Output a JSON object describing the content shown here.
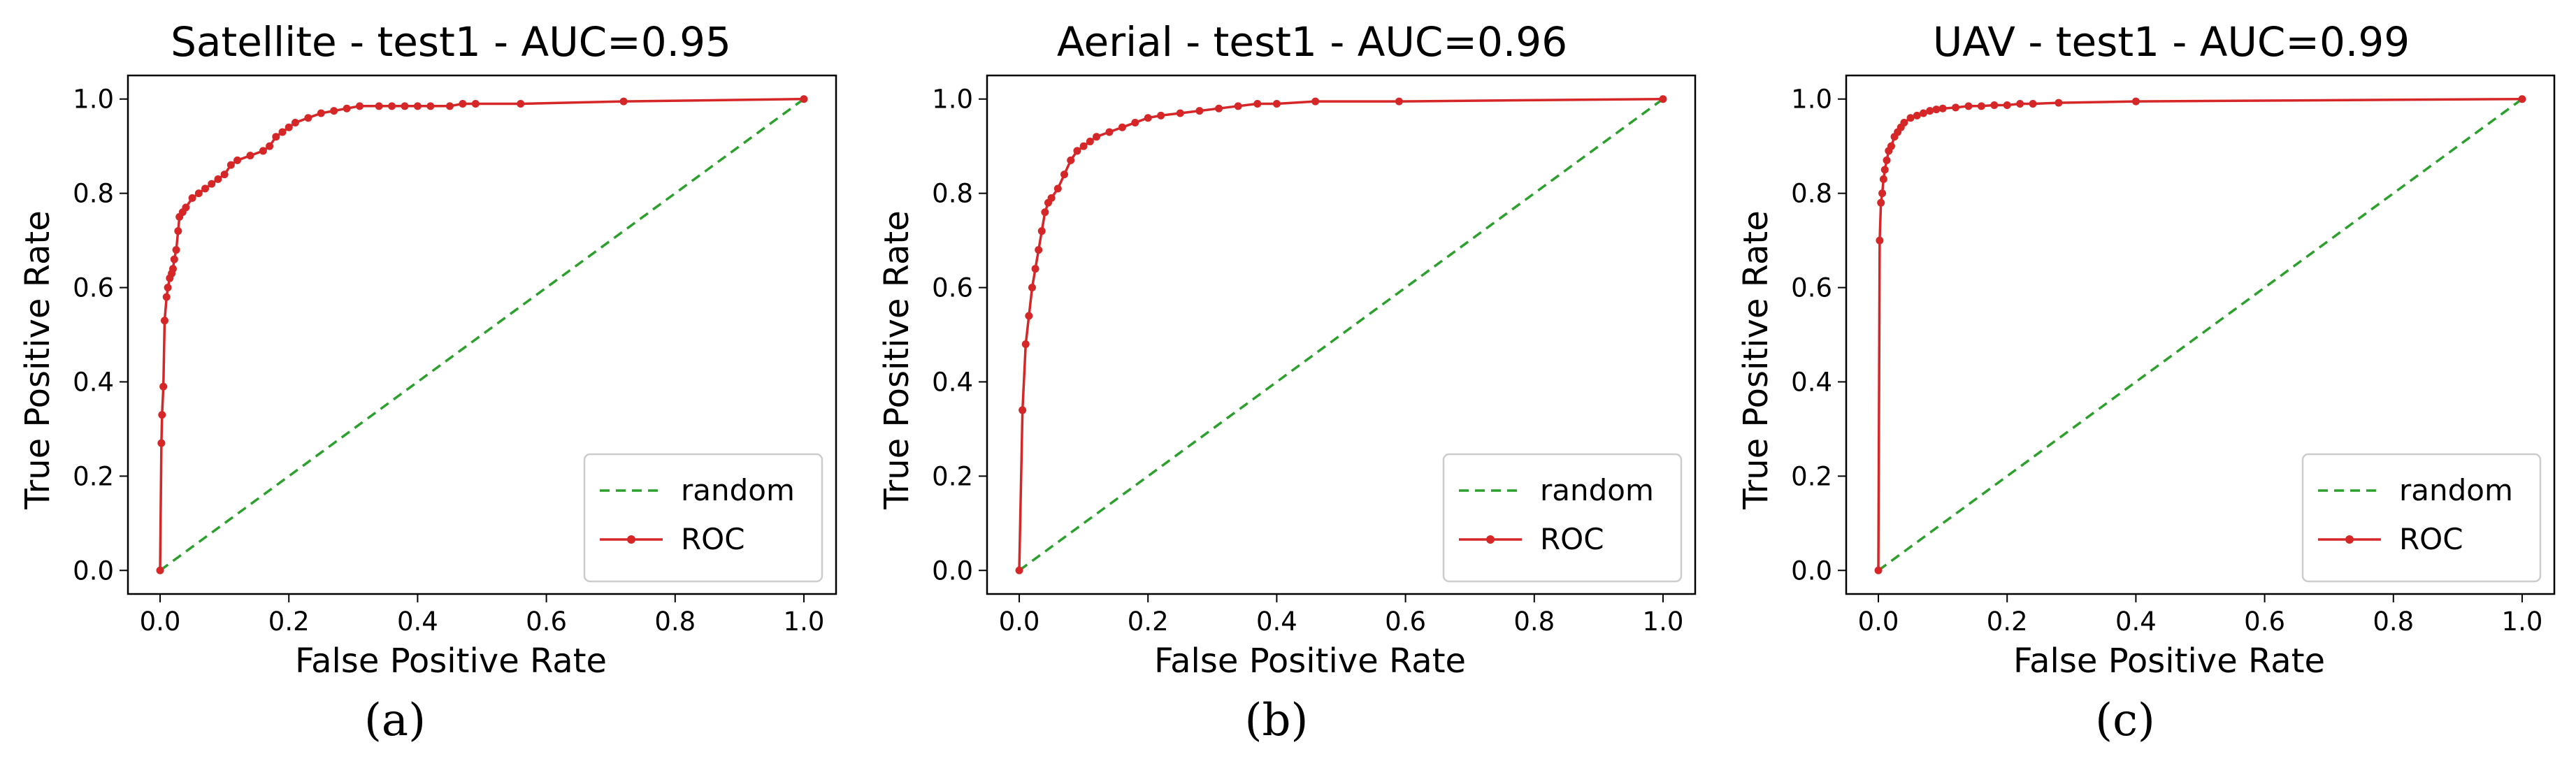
{
  "figure": {
    "colors": {
      "roc": "#d62728",
      "random": "#2ca02c",
      "axis": "#000000",
      "legend_border": "#cccccc"
    }
  },
  "chart_data": [
    {
      "type": "line",
      "caption": "(a)",
      "title": "Satellite - test1 - AUC=0.95",
      "xlabel": "False Positive Rate",
      "ylabel": "True Positive Rate",
      "xlim": [
        -0.05,
        1.05
      ],
      "ylim": [
        -0.05,
        1.05
      ],
      "xticks": [
        0.0,
        0.2,
        0.4,
        0.6,
        0.8,
        1.0
      ],
      "yticks": [
        0.0,
        0.2,
        0.4,
        0.6,
        0.8,
        1.0
      ],
      "tick_labels": [
        "0.0",
        "0.2",
        "0.4",
        "0.6",
        "0.8",
        "1.0"
      ],
      "grid": false,
      "legend": {
        "position": "lower-right",
        "entries": [
          "random",
          "ROC"
        ]
      },
      "series": [
        {
          "name": "random",
          "style": "dashed",
          "x": [
            0.0,
            1.0
          ],
          "y": [
            0.0,
            1.0
          ]
        },
        {
          "name": "ROC",
          "style": "solid-markers",
          "x": [
            0.0,
            0.002,
            0.003,
            0.005,
            0.007,
            0.01,
            0.012,
            0.015,
            0.018,
            0.02,
            0.022,
            0.025,
            0.028,
            0.03,
            0.035,
            0.04,
            0.05,
            0.06,
            0.07,
            0.08,
            0.09,
            0.1,
            0.11,
            0.12,
            0.14,
            0.16,
            0.17,
            0.18,
            0.19,
            0.2,
            0.21,
            0.23,
            0.25,
            0.27,
            0.29,
            0.31,
            0.34,
            0.36,
            0.38,
            0.4,
            0.42,
            0.45,
            0.47,
            0.49,
            0.56,
            0.72,
            1.0
          ],
          "y": [
            0.0,
            0.27,
            0.33,
            0.39,
            0.53,
            0.58,
            0.6,
            0.62,
            0.63,
            0.64,
            0.66,
            0.68,
            0.72,
            0.75,
            0.76,
            0.77,
            0.79,
            0.8,
            0.81,
            0.82,
            0.83,
            0.84,
            0.86,
            0.87,
            0.88,
            0.89,
            0.9,
            0.92,
            0.93,
            0.94,
            0.95,
            0.96,
            0.97,
            0.975,
            0.98,
            0.985,
            0.985,
            0.985,
            0.985,
            0.985,
            0.985,
            0.985,
            0.99,
            0.99,
            0.99,
            0.995,
            1.0
          ]
        }
      ]
    },
    {
      "type": "line",
      "caption": "(b)",
      "title": "Aerial - test1 - AUC=0.96",
      "xlabel": "False Positive Rate",
      "ylabel": "True Positive Rate",
      "xlim": [
        -0.05,
        1.05
      ],
      "ylim": [
        -0.05,
        1.05
      ],
      "xticks": [
        0.0,
        0.2,
        0.4,
        0.6,
        0.8,
        1.0
      ],
      "yticks": [
        0.0,
        0.2,
        0.4,
        0.6,
        0.8,
        1.0
      ],
      "tick_labels": [
        "0.0",
        "0.2",
        "0.4",
        "0.6",
        "0.8",
        "1.0"
      ],
      "grid": false,
      "legend": {
        "position": "lower-right",
        "entries": [
          "random",
          "ROC"
        ]
      },
      "series": [
        {
          "name": "random",
          "style": "dashed",
          "x": [
            0.0,
            1.0
          ],
          "y": [
            0.0,
            1.0
          ]
        },
        {
          "name": "ROC",
          "style": "solid-markers",
          "x": [
            0.0,
            0.005,
            0.01,
            0.015,
            0.02,
            0.025,
            0.03,
            0.035,
            0.04,
            0.045,
            0.05,
            0.06,
            0.07,
            0.08,
            0.09,
            0.1,
            0.11,
            0.12,
            0.14,
            0.16,
            0.18,
            0.2,
            0.22,
            0.25,
            0.28,
            0.31,
            0.34,
            0.37,
            0.4,
            0.46,
            0.59,
            1.0
          ],
          "y": [
            0.0,
            0.34,
            0.48,
            0.54,
            0.6,
            0.64,
            0.68,
            0.72,
            0.76,
            0.78,
            0.79,
            0.81,
            0.84,
            0.87,
            0.89,
            0.9,
            0.91,
            0.92,
            0.93,
            0.94,
            0.95,
            0.96,
            0.965,
            0.97,
            0.975,
            0.98,
            0.985,
            0.99,
            0.99,
            0.995,
            0.995,
            1.0
          ]
        }
      ]
    },
    {
      "type": "line",
      "caption": "(c)",
      "title": "UAV - test1 - AUC=0.99",
      "xlabel": "False Positive Rate",
      "ylabel": "True Positive Rate",
      "xlim": [
        -0.05,
        1.05
      ],
      "ylim": [
        -0.05,
        1.05
      ],
      "xticks": [
        0.0,
        0.2,
        0.4,
        0.6,
        0.8,
        1.0
      ],
      "yticks": [
        0.0,
        0.2,
        0.4,
        0.6,
        0.8,
        1.0
      ],
      "tick_labels": [
        "0.0",
        "0.2",
        "0.4",
        "0.6",
        "0.8",
        "1.0"
      ],
      "grid": false,
      "legend": {
        "position": "lower-right",
        "entries": [
          "random",
          "ROC"
        ]
      },
      "series": [
        {
          "name": "random",
          "style": "dashed",
          "x": [
            0.0,
            1.0
          ],
          "y": [
            0.0,
            1.0
          ]
        },
        {
          "name": "ROC",
          "style": "solid-markers",
          "x": [
            0.0,
            0.002,
            0.004,
            0.006,
            0.008,
            0.01,
            0.013,
            0.016,
            0.02,
            0.025,
            0.03,
            0.035,
            0.04,
            0.05,
            0.06,
            0.07,
            0.08,
            0.09,
            0.1,
            0.12,
            0.14,
            0.16,
            0.18,
            0.2,
            0.22,
            0.24,
            0.28,
            0.4,
            1.0
          ],
          "y": [
            0.0,
            0.7,
            0.78,
            0.8,
            0.83,
            0.85,
            0.87,
            0.89,
            0.9,
            0.92,
            0.93,
            0.94,
            0.95,
            0.96,
            0.965,
            0.97,
            0.975,
            0.978,
            0.98,
            0.982,
            0.985,
            0.985,
            0.987,
            0.987,
            0.99,
            0.99,
            0.992,
            0.995,
            1.0
          ]
        }
      ]
    }
  ]
}
